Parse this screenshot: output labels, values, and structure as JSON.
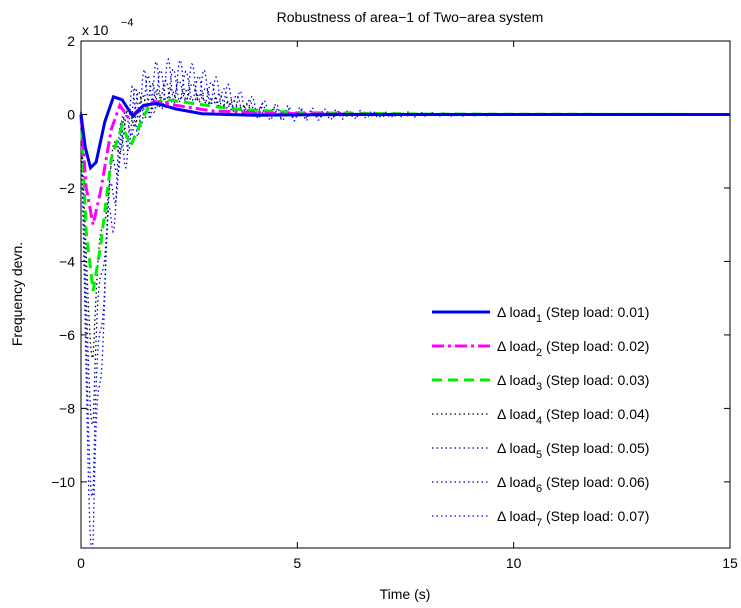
{
  "chart_data": {
    "type": "line",
    "title": "Robustness of area−1 of Two−area system",
    "xlabel": "Time (s)",
    "ylabel": "Frequency devn.",
    "y_exponent_label": "x 10",
    "y_exponent": "−4",
    "xlim": [
      0,
      15
    ],
    "ylim": [
      -11.8,
      2
    ],
    "xticks": [
      0,
      5,
      10,
      15
    ],
    "xtick_labels": [
      "0",
      "5",
      "10",
      "15"
    ],
    "yticks": [
      2,
      0,
      -2,
      -4,
      -6,
      -8,
      -10
    ],
    "ytick_labels": [
      "2",
      "0",
      "−2",
      "−4",
      "−6",
      "−8",
      "−10"
    ],
    "grid": false,
    "legend_position": "bottom-right",
    "series": [
      {
        "legend_prefix": "Δ load",
        "legend_sub": "1",
        "legend_suffix": " (Step load: 0.01)",
        "color": "#0000ee",
        "style": "solid",
        "peak": -1.5,
        "freq": 2.3,
        "decay": 1.4,
        "points": [
          [
            0,
            0
          ],
          [
            0.1,
            -0.9
          ],
          [
            0.22,
            -1.45
          ],
          [
            0.35,
            -1.3
          ],
          [
            0.55,
            -0.2
          ],
          [
            0.75,
            0.48
          ],
          [
            0.95,
            0.4
          ],
          [
            1.2,
            -0.05
          ],
          [
            1.45,
            0.25
          ],
          [
            1.75,
            0.3
          ],
          [
            2.2,
            0.15
          ],
          [
            2.8,
            0.02
          ],
          [
            4,
            -0.02
          ],
          [
            6,
            0
          ],
          [
            15,
            0
          ]
        ]
      },
      {
        "legend_prefix": "Δ load",
        "legend_sub": "2",
        "legend_suffix": " (Step load: 0.02)",
        "color": "#ff00ff",
        "style": "dashdot",
        "peak": -3.0,
        "freq": 2.5,
        "decay": 1.0,
        "points": [
          [
            0,
            0
          ],
          [
            0.12,
            -2.0
          ],
          [
            0.28,
            -3.0
          ],
          [
            0.45,
            -2.1
          ],
          [
            0.7,
            -0.4
          ],
          [
            0.9,
            0.25
          ],
          [
            1.1,
            -0.1
          ],
          [
            1.35,
            0.15
          ],
          [
            1.7,
            0.35
          ],
          [
            2.2,
            0.25
          ],
          [
            3,
            0.1
          ],
          [
            4.5,
            0.03
          ],
          [
            7,
            0
          ],
          [
            15,
            0
          ]
        ]
      },
      {
        "legend_prefix": "Δ load",
        "legend_sub": "3",
        "legend_suffix": " (Step load: 0.03)",
        "color": "#00ee00",
        "style": "dashed",
        "peak": -4.8,
        "freq": 2.7,
        "decay": 0.8,
        "points": [
          [
            0,
            0
          ],
          [
            0.12,
            -3.2
          ],
          [
            0.28,
            -4.8
          ],
          [
            0.45,
            -3.6
          ],
          [
            0.7,
            -1.2
          ],
          [
            0.95,
            -0.3
          ],
          [
            1.15,
            -0.85
          ],
          [
            1.35,
            -0.3
          ],
          [
            1.6,
            0.3
          ],
          [
            2,
            0.4
          ],
          [
            2.6,
            0.3
          ],
          [
            3.5,
            0.15
          ],
          [
            5,
            0.05
          ],
          [
            8,
            0.01
          ],
          [
            15,
            0
          ]
        ]
      },
      {
        "legend_prefix": "Δ load",
        "legend_sub": "4",
        "legend_suffix": " (Step load: 0.04)",
        "color": "#000000",
        "style": "dotted",
        "peak": -6.4,
        "freq": 3.0,
        "decay": 0.65
      },
      {
        "legend_prefix": "Δ load",
        "legend_sub": "5",
        "legend_suffix": " (Step load: 0.05)",
        "color": "#000088",
        "style": "dotted",
        "peak": -8.2,
        "freq": 3.2,
        "decay": 0.55
      },
      {
        "legend_prefix": "Δ load",
        "legend_sub": "6",
        "legend_suffix": " (Step load: 0.06)",
        "color": "#0000cc",
        "style": "dotted",
        "peak": -10.2,
        "freq": 3.4,
        "decay": 0.47
      },
      {
        "legend_prefix": "Δ load",
        "legend_sub": "7",
        "legend_suffix": " (Step load: 0.07)",
        "color": "#0000ff",
        "style": "dotted",
        "peak": -11.8,
        "freq": 3.6,
        "decay": 0.4
      }
    ]
  }
}
